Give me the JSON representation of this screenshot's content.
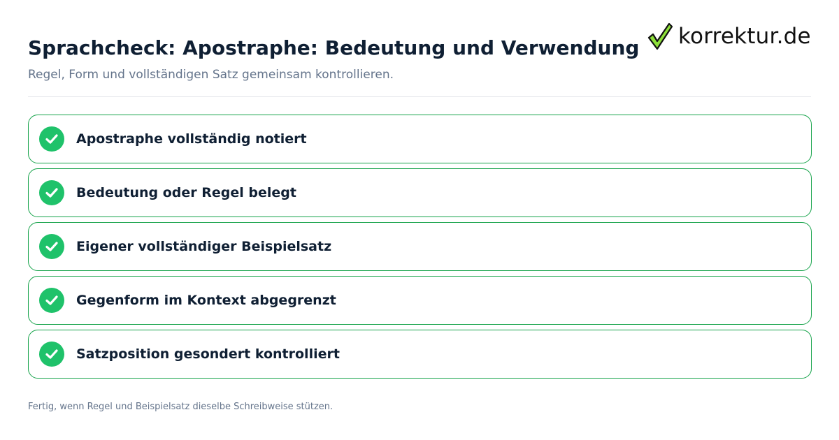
{
  "brand": {
    "name": "korrektur.de",
    "icon": "checkmark-logo-icon",
    "colors": {
      "check_fill": "#8ee03a",
      "check_stroke": "#111111"
    }
  },
  "header": {
    "title": "Sprachcheck: Apostraphe: Bedeutung und Verwendung",
    "subtitle": "Regel, Form und vollständigen Satz gemeinsam kontrollieren."
  },
  "checklist": {
    "accent_color": "#1fc26a",
    "border_color": "#16a34a",
    "items": [
      {
        "label": "Apostraphe vollständig notiert",
        "icon": "check-circle-icon",
        "checked": true
      },
      {
        "label": "Bedeutung oder Regel belegt",
        "icon": "check-circle-icon",
        "checked": true
      },
      {
        "label": "Eigener vollständiger Beispielsatz",
        "icon": "check-circle-icon",
        "checked": true
      },
      {
        "label": "Gegenform im Kontext abgegrenzt",
        "icon": "check-circle-icon",
        "checked": true
      },
      {
        "label": "Satzposition gesondert kontrolliert",
        "icon": "check-circle-icon",
        "checked": true
      }
    ]
  },
  "footer": {
    "note": "Fertig, wenn Regel und Beispielsatz dieselbe Schreibweise stützen."
  }
}
